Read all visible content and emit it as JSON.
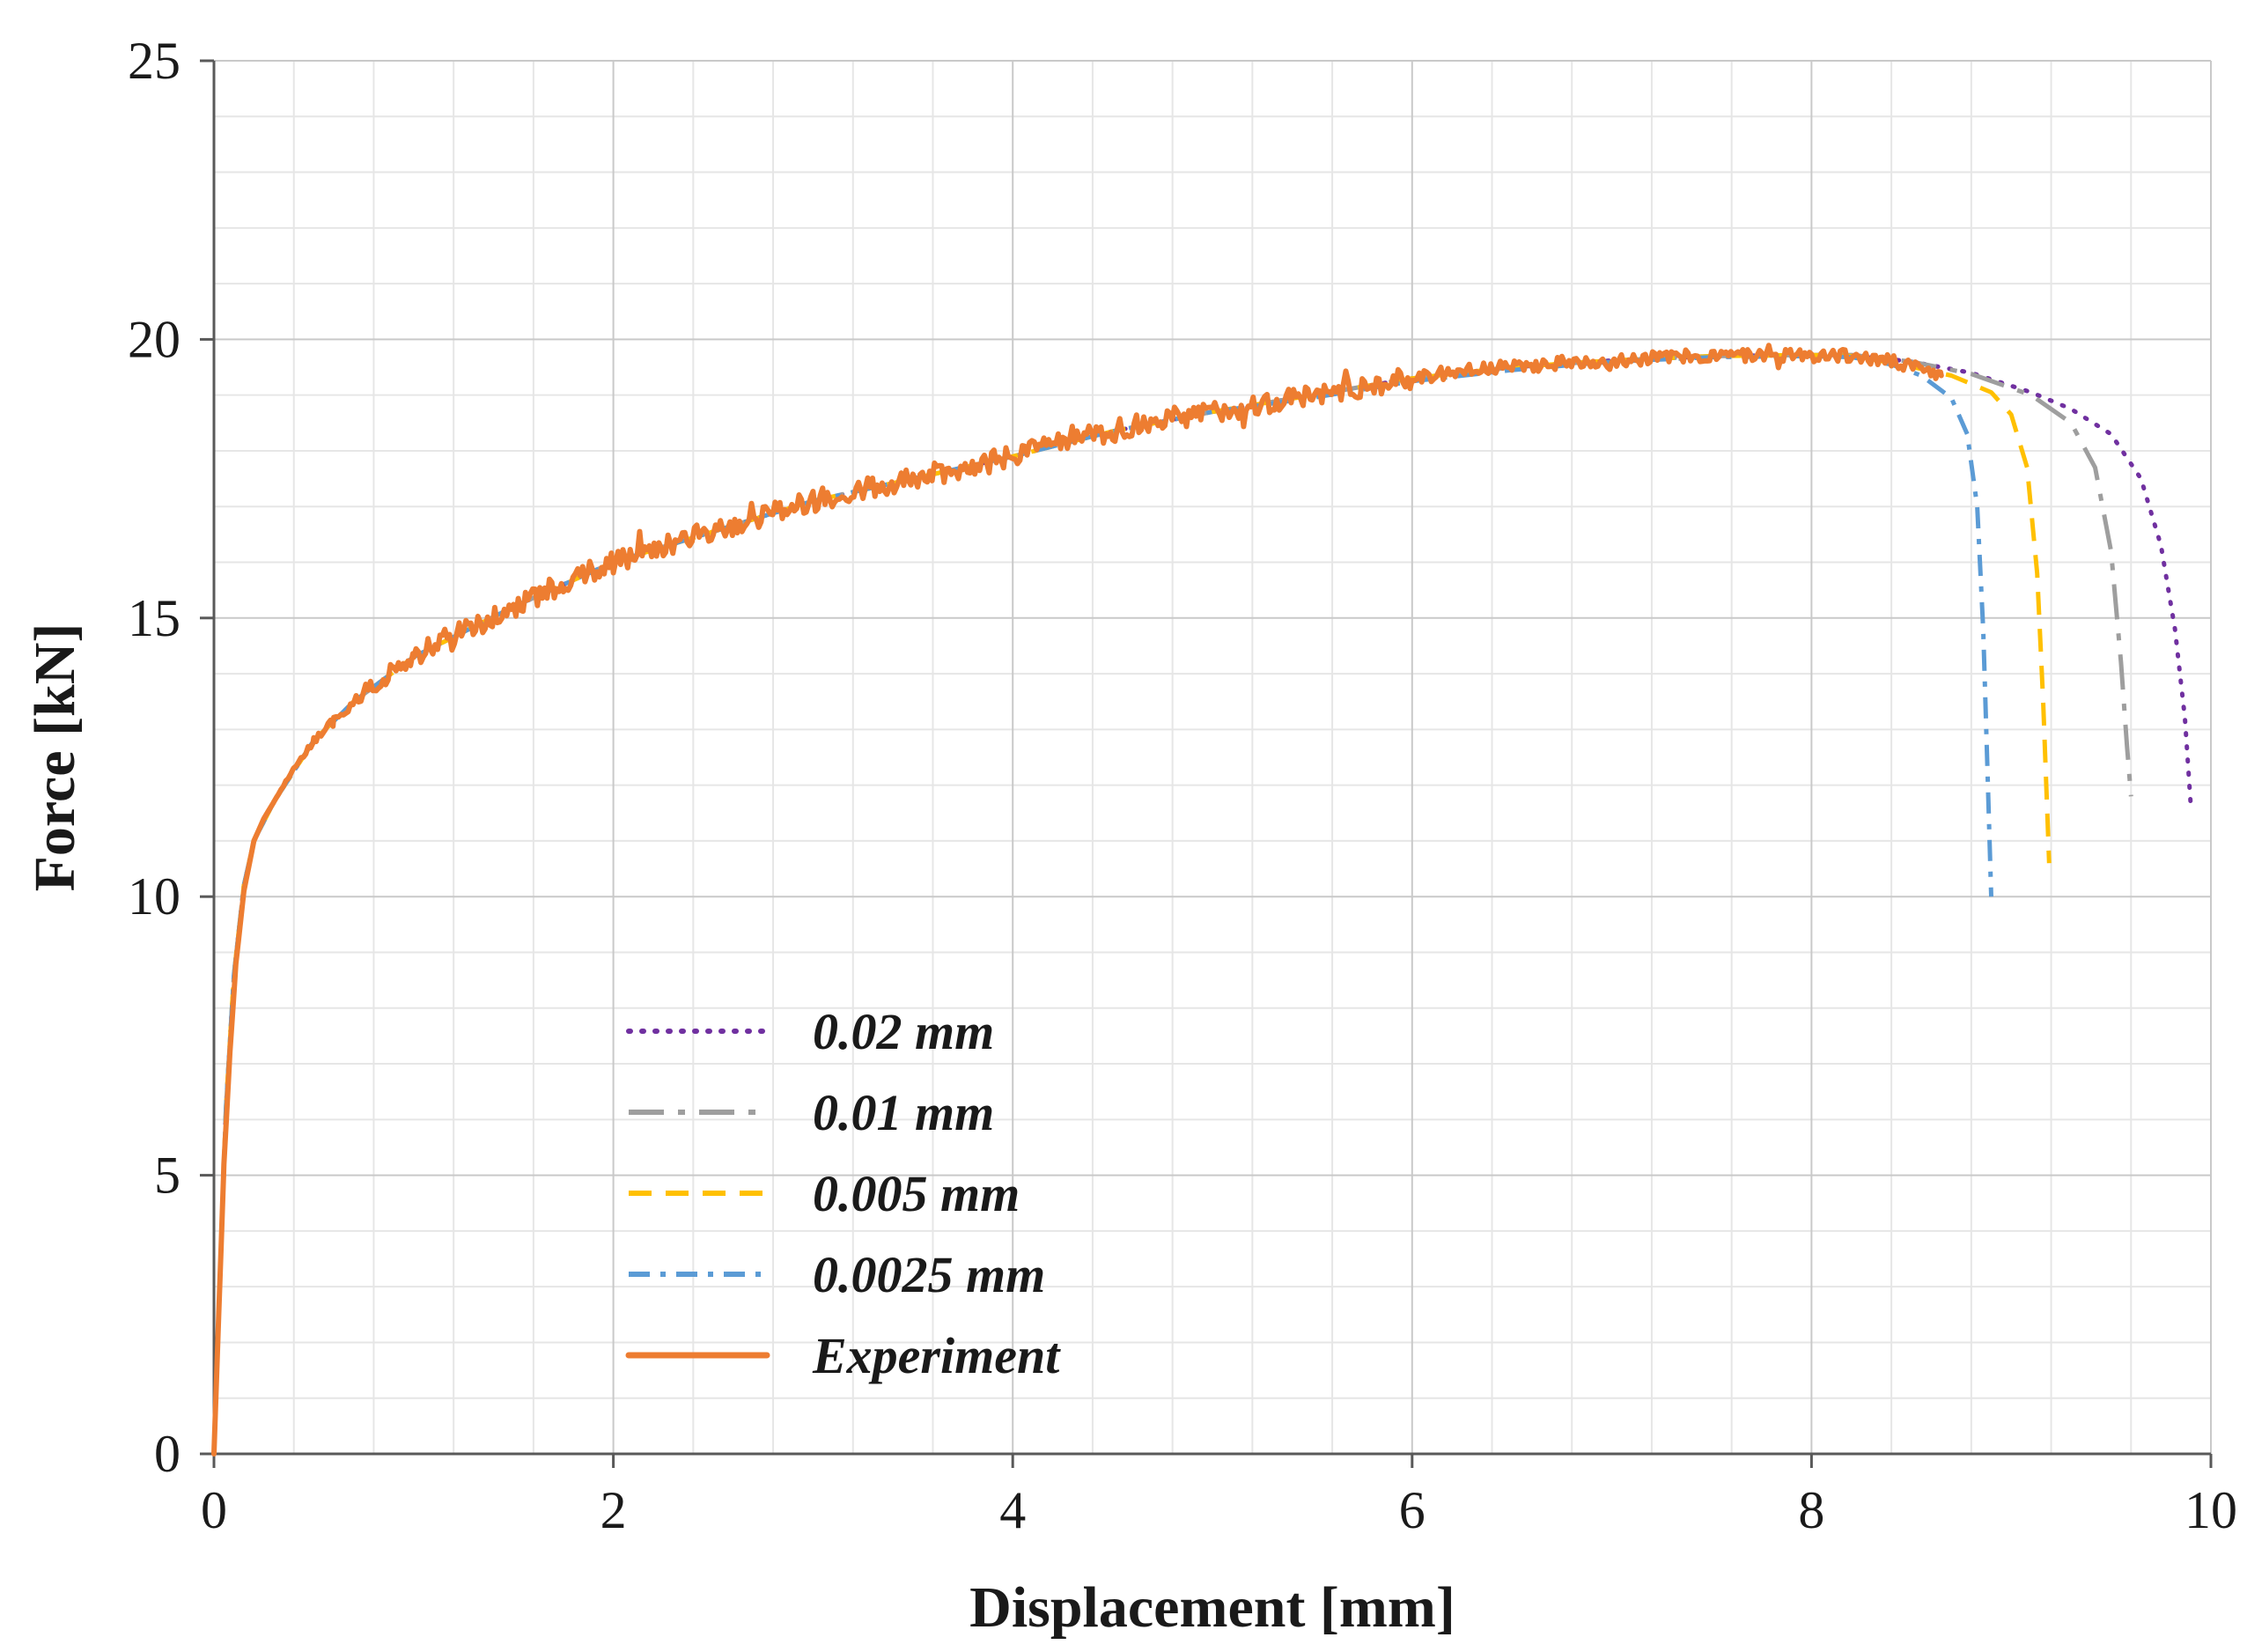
{
  "page": {
    "background": "#ffffff"
  },
  "chart_data": {
    "type": "line",
    "title": "",
    "xlabel": "Displacement [mm]",
    "ylabel": "Force [kN]",
    "xlim": [
      0,
      10
    ],
    "ylim": [
      0,
      25
    ],
    "x_ticks": [
      0,
      2,
      4,
      6,
      8,
      10
    ],
    "y_ticks": [
      0,
      5,
      10,
      15,
      20,
      25
    ],
    "x_minor_step": 0.4,
    "y_minor_step": 1,
    "grid": true,
    "legend_position": "inside-lower-left",
    "colors": {
      "major_grid": "#c9c9c9",
      "minor_grid": "#e6e6e6",
      "axis": "#595959",
      "text": "#1a1a1a"
    },
    "series": [
      {
        "name": "0.02 mm",
        "color": "#7030A0",
        "style": "dotted",
        "dash": "2 13",
        "cap": "round",
        "width": 5,
        "points": [
          [
            0,
            0
          ],
          [
            0.06,
            6.2
          ],
          [
            0.1,
            8.6
          ],
          [
            0.15,
            10.2
          ],
          [
            0.2,
            11.0
          ],
          [
            0.3,
            11.7
          ],
          [
            0.5,
            12.8
          ],
          [
            0.7,
            13.5
          ],
          [
            1.0,
            14.3
          ],
          [
            1.5,
            15.2
          ],
          [
            2.0,
            16.0
          ],
          [
            2.5,
            16.55
          ],
          [
            3.0,
            17.1
          ],
          [
            3.5,
            17.5
          ],
          [
            4.0,
            17.9
          ],
          [
            4.5,
            18.35
          ],
          [
            5.0,
            18.7
          ],
          [
            5.5,
            19.0
          ],
          [
            6.0,
            19.3
          ],
          [
            6.5,
            19.5
          ],
          [
            7.0,
            19.62
          ],
          [
            7.5,
            19.7
          ],
          [
            8.0,
            19.72
          ],
          [
            8.2,
            19.72
          ],
          [
            8.5,
            19.6
          ],
          [
            8.8,
            19.4
          ],
          [
            9.1,
            19.05
          ],
          [
            9.3,
            18.75
          ],
          [
            9.5,
            18.3
          ],
          [
            9.65,
            17.5
          ],
          [
            9.75,
            16.3
          ],
          [
            9.82,
            14.8
          ],
          [
            9.87,
            13.2
          ],
          [
            9.9,
            11.6
          ]
        ]
      },
      {
        "name": "0.01 mm",
        "color": "#9e9e9e",
        "style": "dash-dot",
        "dash": "40 16 8 16",
        "cap": "butt",
        "width": 5,
        "points": [
          [
            0,
            0
          ],
          [
            0.06,
            6.2
          ],
          [
            0.1,
            8.6
          ],
          [
            0.15,
            10.2
          ],
          [
            0.2,
            11.0
          ],
          [
            0.3,
            11.7
          ],
          [
            0.5,
            12.8
          ],
          [
            0.7,
            13.5
          ],
          [
            1.0,
            14.3
          ],
          [
            1.5,
            15.2
          ],
          [
            2.0,
            16.0
          ],
          [
            2.5,
            16.55
          ],
          [
            3.0,
            17.1
          ],
          [
            3.5,
            17.5
          ],
          [
            4.0,
            17.9
          ],
          [
            4.5,
            18.35
          ],
          [
            5.0,
            18.7
          ],
          [
            5.5,
            19.0
          ],
          [
            6.0,
            19.3
          ],
          [
            6.5,
            19.5
          ],
          [
            7.0,
            19.62
          ],
          [
            7.5,
            19.7
          ],
          [
            8.0,
            19.72
          ],
          [
            8.2,
            19.72
          ],
          [
            8.5,
            19.6
          ],
          [
            8.8,
            19.38
          ],
          [
            9.1,
            19.0
          ],
          [
            9.3,
            18.5
          ],
          [
            9.42,
            17.7
          ],
          [
            9.5,
            16.2
          ],
          [
            9.55,
            14.2
          ],
          [
            9.58,
            12.7
          ],
          [
            9.6,
            11.8
          ]
        ]
      },
      {
        "name": "0.005 mm",
        "color": "#FFC000",
        "style": "dashed",
        "dash": "26 16",
        "cap": "butt",
        "width": 5,
        "points": [
          [
            0,
            0
          ],
          [
            0.06,
            6.2
          ],
          [
            0.1,
            8.6
          ],
          [
            0.15,
            10.2
          ],
          [
            0.2,
            11.0
          ],
          [
            0.3,
            11.7
          ],
          [
            0.5,
            12.8
          ],
          [
            0.7,
            13.5
          ],
          [
            1.0,
            14.3
          ],
          [
            1.5,
            15.2
          ],
          [
            2.0,
            16.0
          ],
          [
            2.5,
            16.55
          ],
          [
            3.0,
            17.1
          ],
          [
            3.5,
            17.5
          ],
          [
            4.0,
            17.9
          ],
          [
            4.5,
            18.35
          ],
          [
            5.0,
            18.7
          ],
          [
            5.5,
            19.0
          ],
          [
            6.0,
            19.3
          ],
          [
            6.5,
            19.5
          ],
          [
            7.0,
            19.62
          ],
          [
            7.5,
            19.7
          ],
          [
            8.0,
            19.72
          ],
          [
            8.2,
            19.7
          ],
          [
            8.45,
            19.55
          ],
          [
            8.7,
            19.35
          ],
          [
            8.9,
            19.05
          ],
          [
            9.0,
            18.65
          ],
          [
            9.08,
            17.7
          ],
          [
            9.13,
            15.8
          ],
          [
            9.16,
            13.5
          ],
          [
            9.19,
            10.6
          ]
        ]
      },
      {
        "name": "0.0025 mm",
        "color": "#5B9BD5",
        "style": "dash-dot",
        "dash": "24 12 6 12",
        "cap": "butt",
        "width": 5,
        "points": [
          [
            0,
            0
          ],
          [
            0.06,
            6.2
          ],
          [
            0.1,
            8.6
          ],
          [
            0.15,
            10.2
          ],
          [
            0.2,
            11.0
          ],
          [
            0.3,
            11.7
          ],
          [
            0.5,
            12.8
          ],
          [
            0.7,
            13.5
          ],
          [
            1.0,
            14.3
          ],
          [
            1.5,
            15.2
          ],
          [
            2.0,
            16.0
          ],
          [
            2.5,
            16.55
          ],
          [
            3.0,
            17.1
          ],
          [
            3.5,
            17.5
          ],
          [
            4.0,
            17.9
          ],
          [
            4.5,
            18.35
          ],
          [
            5.0,
            18.7
          ],
          [
            5.5,
            18.95
          ],
          [
            6.0,
            19.25
          ],
          [
            6.5,
            19.45
          ],
          [
            7.0,
            19.6
          ],
          [
            7.5,
            19.68
          ],
          [
            8.0,
            19.7
          ],
          [
            8.2,
            19.68
          ],
          [
            8.4,
            19.55
          ],
          [
            8.55,
            19.35
          ],
          [
            8.7,
            18.95
          ],
          [
            8.78,
            18.3
          ],
          [
            8.83,
            17.0
          ],
          [
            8.86,
            14.8
          ],
          [
            8.88,
            12.4
          ],
          [
            8.9,
            10.0
          ]
        ]
      },
      {
        "name": "Experiment",
        "color": "#ED7D31",
        "style": "solid",
        "dash": "",
        "cap": "round",
        "width": 6,
        "noise_amplitude": 0.2,
        "noise_step": 0.012,
        "points": [
          [
            0,
            0
          ],
          [
            0.05,
            5.2
          ],
          [
            0.08,
            7.2
          ],
          [
            0.11,
            8.8
          ],
          [
            0.15,
            10.1
          ],
          [
            0.2,
            11.0
          ],
          [
            0.25,
            11.4
          ],
          [
            0.3,
            11.7
          ],
          [
            0.4,
            12.3
          ],
          [
            0.5,
            12.8
          ],
          [
            0.6,
            13.15
          ],
          [
            0.7,
            13.5
          ],
          [
            0.8,
            13.8
          ],
          [
            0.9,
            14.05
          ],
          [
            1.0,
            14.3
          ],
          [
            1.25,
            14.8
          ],
          [
            1.5,
            15.15
          ],
          [
            1.75,
            15.65
          ],
          [
            2.0,
            16.0
          ],
          [
            2.25,
            16.3
          ],
          [
            2.5,
            16.55
          ],
          [
            2.75,
            16.85
          ],
          [
            3.0,
            17.1
          ],
          [
            3.25,
            17.3
          ],
          [
            3.5,
            17.5
          ],
          [
            3.75,
            17.7
          ],
          [
            4.0,
            17.9
          ],
          [
            4.25,
            18.15
          ],
          [
            4.5,
            18.35
          ],
          [
            4.75,
            18.55
          ],
          [
            5.0,
            18.7
          ],
          [
            5.25,
            18.85
          ],
          [
            5.5,
            19.0
          ],
          [
            5.75,
            19.15
          ],
          [
            6.0,
            19.3
          ],
          [
            6.25,
            19.45
          ],
          [
            6.5,
            19.5
          ],
          [
            6.75,
            19.58
          ],
          [
            7.0,
            19.62
          ],
          [
            7.25,
            19.68
          ],
          [
            7.5,
            19.7
          ],
          [
            7.75,
            19.72
          ],
          [
            8.0,
            19.72
          ],
          [
            8.2,
            19.7
          ],
          [
            8.4,
            19.6
          ],
          [
            8.55,
            19.45
          ],
          [
            8.65,
            19.35
          ]
        ]
      }
    ]
  }
}
